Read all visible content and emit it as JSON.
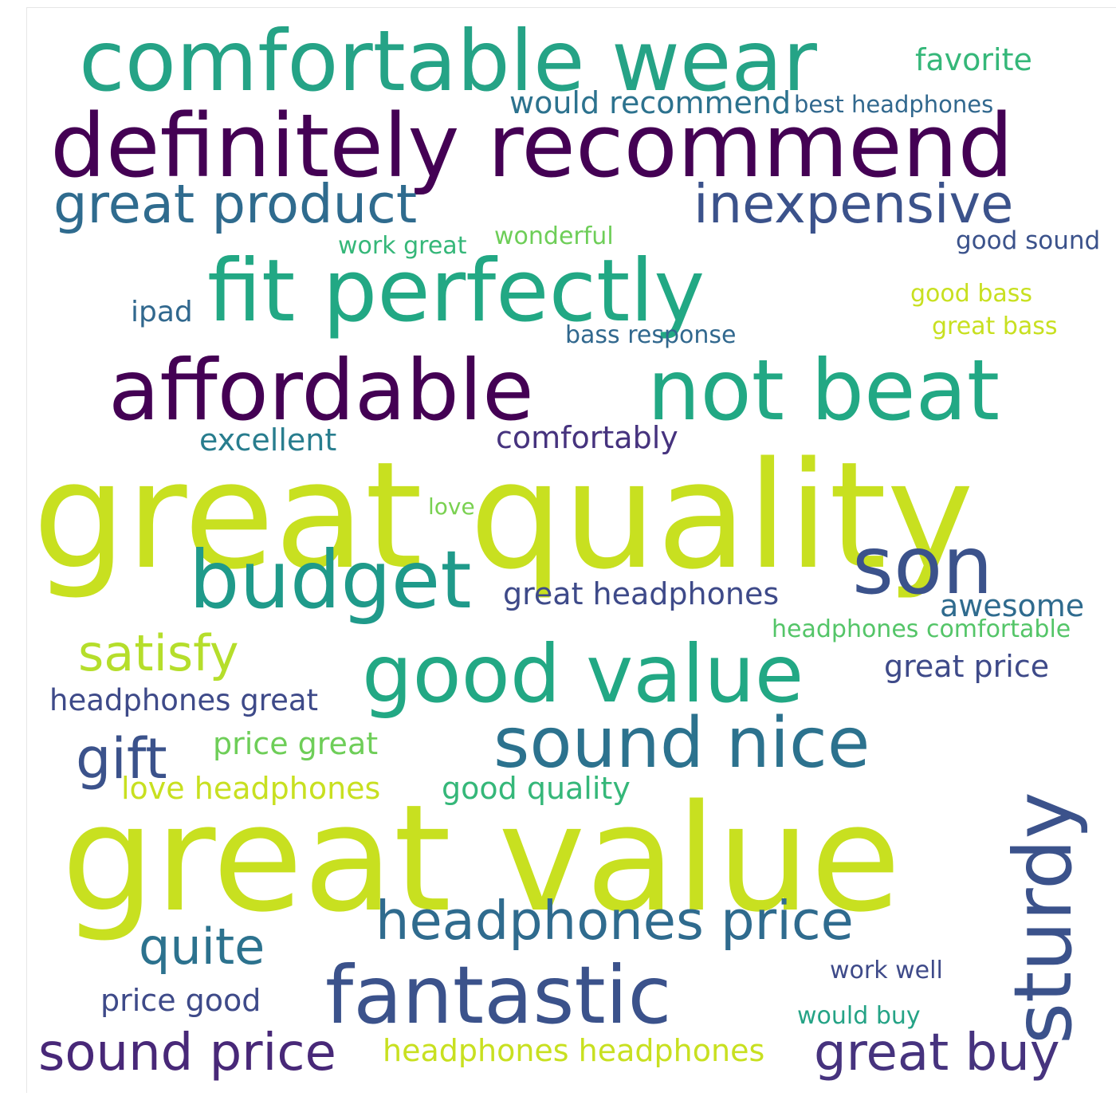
{
  "words": [
    {
      "id": "great-quality",
      "text": "great quality",
      "color": "#c8e020"
    },
    {
      "id": "great-value",
      "text": "great value",
      "color": "#c8e020"
    },
    {
      "id": "definitely-recommend",
      "text": "definitely recommend",
      "color": "#440154"
    },
    {
      "id": "comfortable-wear",
      "text": "comfortable wear",
      "color": "#25a386"
    },
    {
      "id": "fit-perfectly",
      "text": "fit perfectly",
      "color": "#22a884"
    },
    {
      "id": "affordable",
      "text": "affordable",
      "color": "#440154"
    },
    {
      "id": "not-beat",
      "text": "not beat",
      "color": "#22a884"
    },
    {
      "id": "budget",
      "text": "budget",
      "color": "#1f9a8a"
    },
    {
      "id": "son",
      "text": "son",
      "color": "#3b528b"
    },
    {
      "id": "good-value",
      "text": "good value",
      "color": "#22a884"
    },
    {
      "id": "sound-nice",
      "text": "sound nice",
      "color": "#2c728e"
    },
    {
      "id": "fantastic",
      "text": "fantastic",
      "color": "#3b528b"
    },
    {
      "id": "sturdy",
      "text": "sturdy",
      "color": "#3b528b"
    },
    {
      "id": "headphones-price",
      "text": "headphones price",
      "color": "#2f6b8e"
    },
    {
      "id": "great-product",
      "text": "great product",
      "color": "#2f6b8e"
    },
    {
      "id": "inexpensive",
      "text": "inexpensive",
      "color": "#3b528b"
    },
    {
      "id": "satisfy",
      "text": "satisfy",
      "color": "#b5de2b"
    },
    {
      "id": "gift",
      "text": "gift",
      "color": "#3b528b"
    },
    {
      "id": "quite",
      "text": "quite",
      "color": "#2c728e"
    },
    {
      "id": "sound-price",
      "text": "sound price",
      "color": "#482878"
    },
    {
      "id": "great-buy",
      "text": "great buy",
      "color": "#46337e"
    },
    {
      "id": "headphones-headphones",
      "text": "headphones headphones",
      "color": "#c8e020"
    },
    {
      "id": "favorite",
      "text": "favorite",
      "color": "#35b779"
    },
    {
      "id": "would-recommend",
      "text": "would recommend",
      "color": "#2c728e"
    },
    {
      "id": "best-headphones",
      "text": "best headphones",
      "color": "#31688e"
    },
    {
      "id": "work-great",
      "text": "work great",
      "color": "#35b779"
    },
    {
      "id": "wonderful",
      "text": "wonderful",
      "color": "#6ece58"
    },
    {
      "id": "good-sound",
      "text": "good sound",
      "color": "#3b528b"
    },
    {
      "id": "ipad",
      "text": "ipad",
      "color": "#31688e"
    },
    {
      "id": "good-bass",
      "text": "good bass",
      "color": "#c8e020"
    },
    {
      "id": "great-bass",
      "text": "great bass",
      "color": "#c8e020"
    },
    {
      "id": "bass-response",
      "text": "bass response",
      "color": "#31688e"
    },
    {
      "id": "excellent",
      "text": "excellent",
      "color": "#287d8e"
    },
    {
      "id": "comfortably",
      "text": "comfortably",
      "color": "#46337e"
    },
    {
      "id": "love",
      "text": "love",
      "color": "#7ad151"
    },
    {
      "id": "great-headphones",
      "text": "great headphones",
      "color": "#3e4a89"
    },
    {
      "id": "awesome",
      "text": "awesome",
      "color": "#2f6b8e"
    },
    {
      "id": "headphones-comfortable",
      "text": "headphones comfortable",
      "color": "#54c568"
    },
    {
      "id": "great-price",
      "text": "great price",
      "color": "#3e4a89"
    },
    {
      "id": "headphones-great",
      "text": "headphones great",
      "color": "#3e4a89"
    },
    {
      "id": "price-great",
      "text": "price great",
      "color": "#6ece58"
    },
    {
      "id": "love-headphones",
      "text": "love headphones",
      "color": "#c8e020"
    },
    {
      "id": "good-quality",
      "text": "good quality",
      "color": "#35b779"
    },
    {
      "id": "price-good",
      "text": "price good",
      "color": "#3e4a89"
    },
    {
      "id": "work-well",
      "text": "work well",
      "color": "#3e4a89"
    },
    {
      "id": "would-buy",
      "text": "would buy",
      "color": "#25a386"
    }
  ]
}
